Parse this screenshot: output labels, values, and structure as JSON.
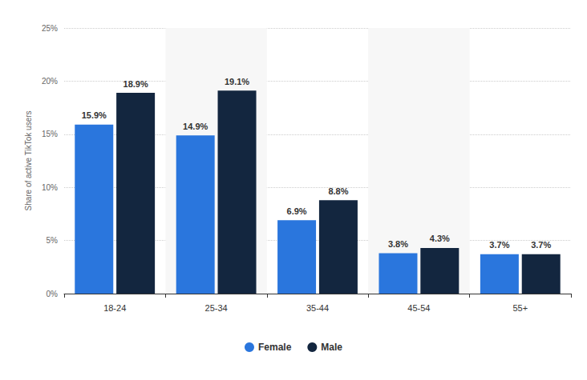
{
  "chart_data": {
    "type": "bar",
    "ylabel": "Share of active TikTok users",
    "categories": [
      "18-24",
      "25-34",
      "35-44",
      "45-54",
      "55+"
    ],
    "series": [
      {
        "name": "Female",
        "color": "#2a76dd",
        "values": [
          15.9,
          14.9,
          6.9,
          3.8,
          3.7
        ],
        "value_labels": [
          "15.9%",
          "14.9%",
          "6.9%",
          "3.8%",
          "3.7%"
        ]
      },
      {
        "name": "Male",
        "color": "#13263f",
        "values": [
          18.9,
          19.1,
          8.8,
          4.3,
          3.7
        ],
        "value_labels": [
          "18.9%",
          "19.1%",
          "8.8%",
          "4.3%",
          "3.7%"
        ]
      }
    ],
    "ylim": [
      0,
      25
    ],
    "yticks": [
      {
        "value": 0,
        "label": "0%"
      },
      {
        "value": 5,
        "label": "5%"
      },
      {
        "value": 10,
        "label": "10%"
      },
      {
        "value": 15,
        "label": "15%"
      },
      {
        "value": 20,
        "label": "20%"
      },
      {
        "value": 25,
        "label": "25%"
      }
    ],
    "grid": true,
    "legend": "bottom",
    "data_labels": true
  }
}
